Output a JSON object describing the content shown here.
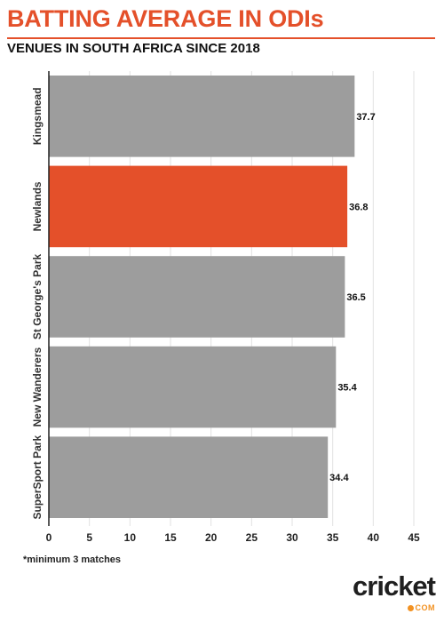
{
  "header": {
    "title": "BATTING AVERAGE IN ODIs",
    "subtitle": "VENUES IN SOUTH AFRICA SINCE 2018"
  },
  "chart_data": {
    "type": "bar",
    "orientation": "horizontal",
    "categories": [
      "Kingsmead",
      "Newlands",
      "St George's Park",
      "New Wanderers",
      "SuperSport Park"
    ],
    "values": [
      37.7,
      36.8,
      36.5,
      35.4,
      34.4
    ],
    "data_labels": [
      "37.7",
      "36.8",
      "36.5",
      "35.4",
      "34.4"
    ],
    "highlight_index": 1,
    "colors": {
      "default": "#9d9d9d",
      "highlight": "#e4502a"
    },
    "xlim": [
      0,
      45
    ],
    "x_ticks": [
      0,
      5,
      10,
      15,
      20,
      25,
      30,
      35,
      40,
      45
    ],
    "grid": true,
    "title": "BATTING AVERAGE IN ODIs",
    "subtitle": "VENUES IN SOUTH AFRICA SINCE 2018",
    "xlabel": "",
    "ylabel": ""
  },
  "footnote": "*minimum 3 matches",
  "logo": {
    "word": "cricket",
    "suffix": "COM",
    "colors": {
      "text": "#1f1f1f",
      "accent": "#f29223"
    }
  }
}
